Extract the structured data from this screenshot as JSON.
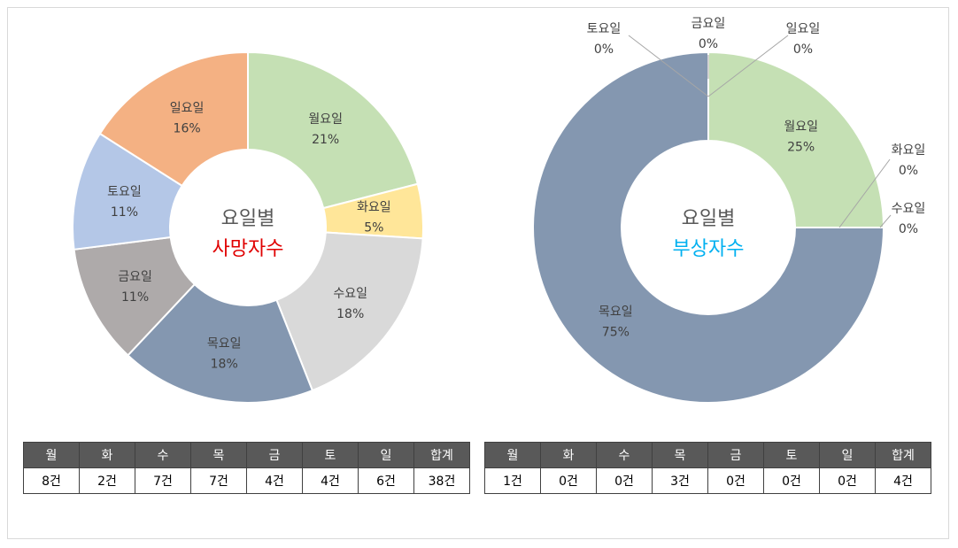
{
  "chart_data": [
    {
      "type": "pie",
      "center_title": "요일별",
      "center_subtitle": "사망자수",
      "subtitle_color": "#e00000",
      "slices": [
        {
          "label": "월요일",
          "value": 21,
          "display": "21%",
          "color": "#c5e0b4"
        },
        {
          "label": "화요일",
          "value": 5,
          "display": "5%",
          "color": "#ffe699"
        },
        {
          "label": "수요일",
          "value": 18,
          "display": "18%",
          "color": "#d9d9d9"
        },
        {
          "label": "목요일",
          "value": 18,
          "display": "18%",
          "color": "#8497b0"
        },
        {
          "label": "금요일",
          "value": 11,
          "display": "11%",
          "color": "#aeaaaa"
        },
        {
          "label": "토요일",
          "value": 11,
          "display": "11%",
          "color": "#b4c7e7"
        },
        {
          "label": "일요일",
          "value": 16,
          "display": "16%",
          "color": "#f4b183"
        }
      ],
      "table": {
        "headers": [
          "월",
          "화",
          "수",
          "목",
          "금",
          "토",
          "일",
          "합계"
        ],
        "values": [
          "8건",
          "2건",
          "7건",
          "7건",
          "4건",
          "4건",
          "6건",
          "38건"
        ]
      }
    },
    {
      "type": "pie",
      "center_title": "요일별",
      "center_subtitle": "부상자수",
      "subtitle_color": "#00b0f0",
      "slices": [
        {
          "label": "월요일",
          "value": 25,
          "display": "25%",
          "color": "#c5e0b4"
        },
        {
          "label": "화요일",
          "value": 0,
          "display": "0%",
          "color": "#ffe699"
        },
        {
          "label": "수요일",
          "value": 0,
          "display": "0%",
          "color": "#d9d9d9"
        },
        {
          "label": "목요일",
          "value": 75,
          "display": "75%",
          "color": "#8497b0"
        },
        {
          "label": "금요일",
          "value": 0,
          "display": "0%",
          "color": "#aeaaaa"
        },
        {
          "label": "토요일",
          "value": 0,
          "display": "0%",
          "color": "#b4c7e7"
        },
        {
          "label": "일요일",
          "value": 0,
          "display": "0%",
          "color": "#f4b183"
        }
      ],
      "table": {
        "headers": [
          "월",
          "화",
          "수",
          "목",
          "금",
          "토",
          "일",
          "합계"
        ],
        "values": [
          "1건",
          "0건",
          "0건",
          "3건",
          "0건",
          "0건",
          "0건",
          "4건"
        ]
      }
    }
  ]
}
